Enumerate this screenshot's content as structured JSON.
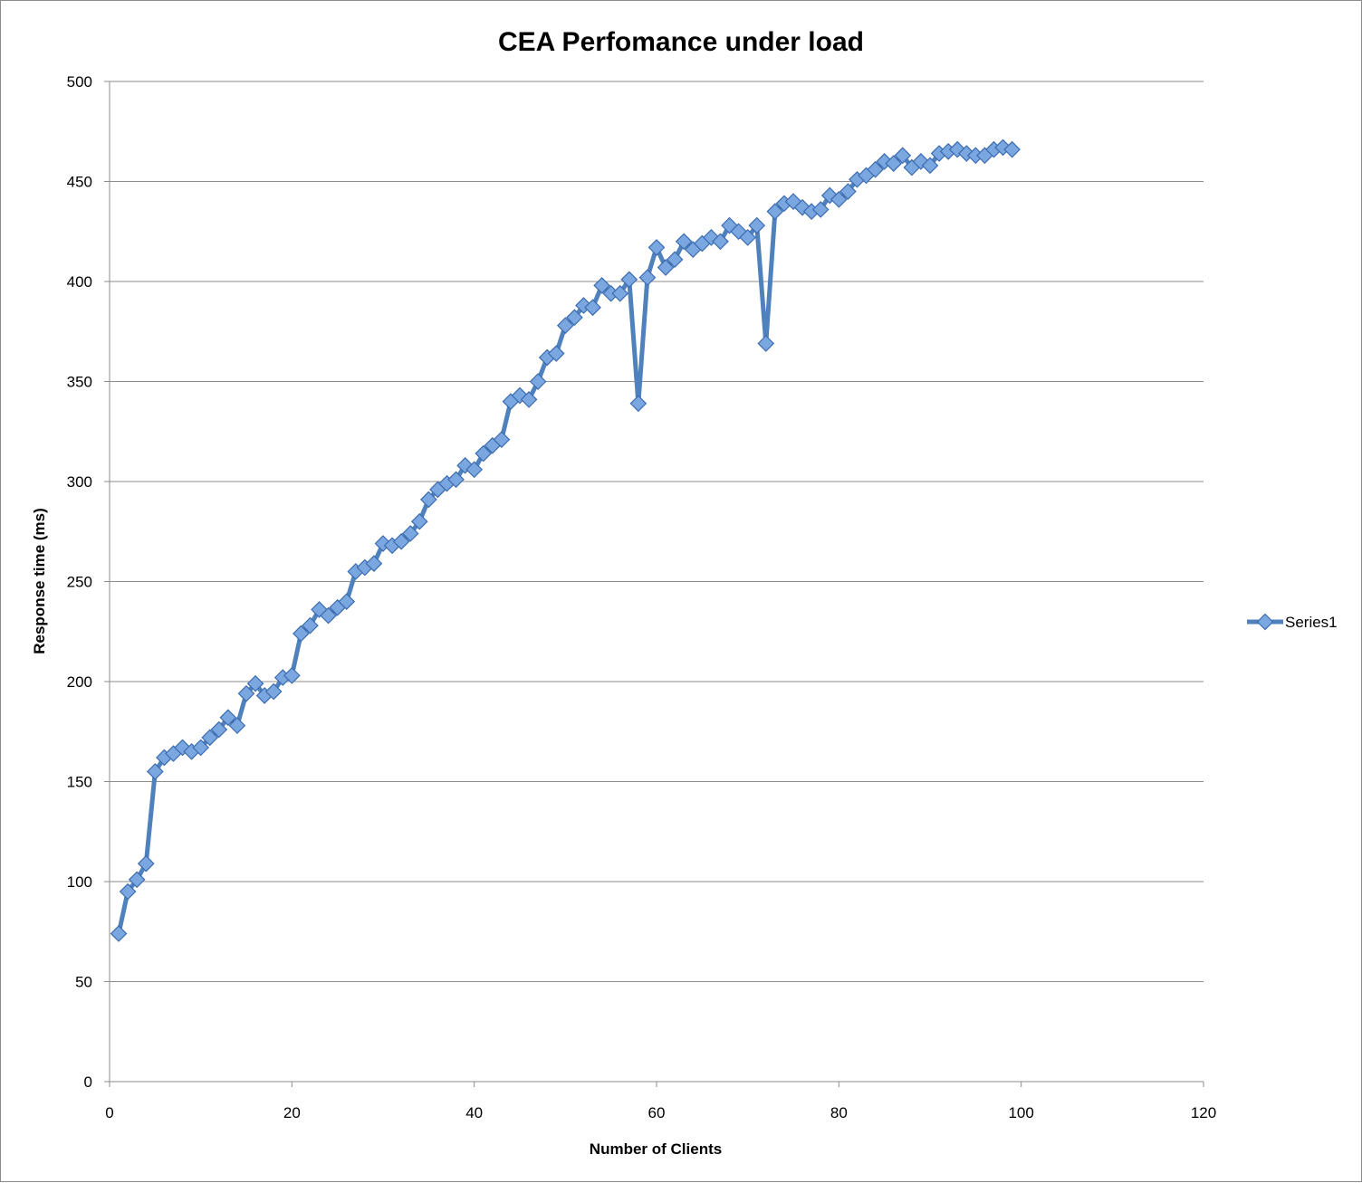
{
  "chart_data": {
    "type": "line",
    "title": "CEA Perfomance under load",
    "xlabel": "Number of Clients",
    "ylabel": "Response time (ms)",
    "xlim": [
      0,
      120
    ],
    "ylim": [
      0,
      500
    ],
    "x_ticks": [
      0,
      20,
      40,
      60,
      80,
      100,
      120
    ],
    "y_ticks": [
      0,
      50,
      100,
      150,
      200,
      250,
      300,
      350,
      400,
      450,
      500
    ],
    "x_tick_labels": [
      "0",
      "20",
      "40",
      "60",
      "80",
      "100",
      "120"
    ],
    "y_tick_labels": [
      "0",
      "50",
      "100",
      "150",
      "200",
      "250",
      "300",
      "350",
      "400",
      "450",
      "500"
    ],
    "grid": "horizontal",
    "legend": "right",
    "colors": {
      "series": "#4f81bd",
      "marker_fill": "#7aa7e0",
      "marker_stroke": "#3c6cb0",
      "grid": "#8c8c8c"
    },
    "series": [
      {
        "name": "Series1",
        "marker": "diamond",
        "x": [
          1,
          2,
          3,
          4,
          5,
          6,
          7,
          8,
          9,
          10,
          11,
          12,
          13,
          14,
          15,
          16,
          17,
          18,
          19,
          20,
          21,
          22,
          23,
          24,
          25,
          26,
          27,
          28,
          29,
          30,
          31,
          32,
          33,
          34,
          35,
          36,
          37,
          38,
          39,
          40,
          41,
          42,
          43,
          44,
          45,
          46,
          47,
          48,
          49,
          50,
          51,
          52,
          53,
          54,
          55,
          56,
          57,
          58,
          59,
          60,
          61,
          62,
          63,
          64,
          65,
          66,
          67,
          68,
          69,
          70,
          71,
          72,
          73,
          74,
          75,
          76,
          77,
          78,
          79,
          80,
          81,
          82,
          83,
          84,
          85,
          86,
          87,
          88,
          89,
          90,
          91,
          92,
          93,
          94,
          95,
          96,
          97,
          98,
          99
        ],
        "values": [
          74,
          95,
          101,
          109,
          155,
          162,
          164,
          167,
          165,
          167,
          172,
          176,
          182,
          178,
          194,
          199,
          193,
          195,
          202,
          203,
          224,
          228,
          236,
          233,
          237,
          240,
          255,
          257,
          259,
          269,
          268,
          270,
          274,
          280,
          291,
          296,
          299,
          301,
          308,
          306,
          314,
          318,
          321,
          340,
          343,
          341,
          350,
          362,
          364,
          378,
          382,
          388,
          387,
          398,
          394,
          394,
          401,
          339,
          402,
          417,
          407,
          411,
          420,
          416,
          419,
          422,
          420,
          428,
          425,
          422,
          428,
          369,
          435,
          439,
          440,
          437,
          435,
          436,
          443,
          441,
          445,
          451,
          453,
          456,
          460,
          459,
          463,
          457,
          460,
          458,
          464,
          465,
          466,
          464,
          463,
          463,
          466,
          467,
          466
        ]
      }
    ]
  }
}
